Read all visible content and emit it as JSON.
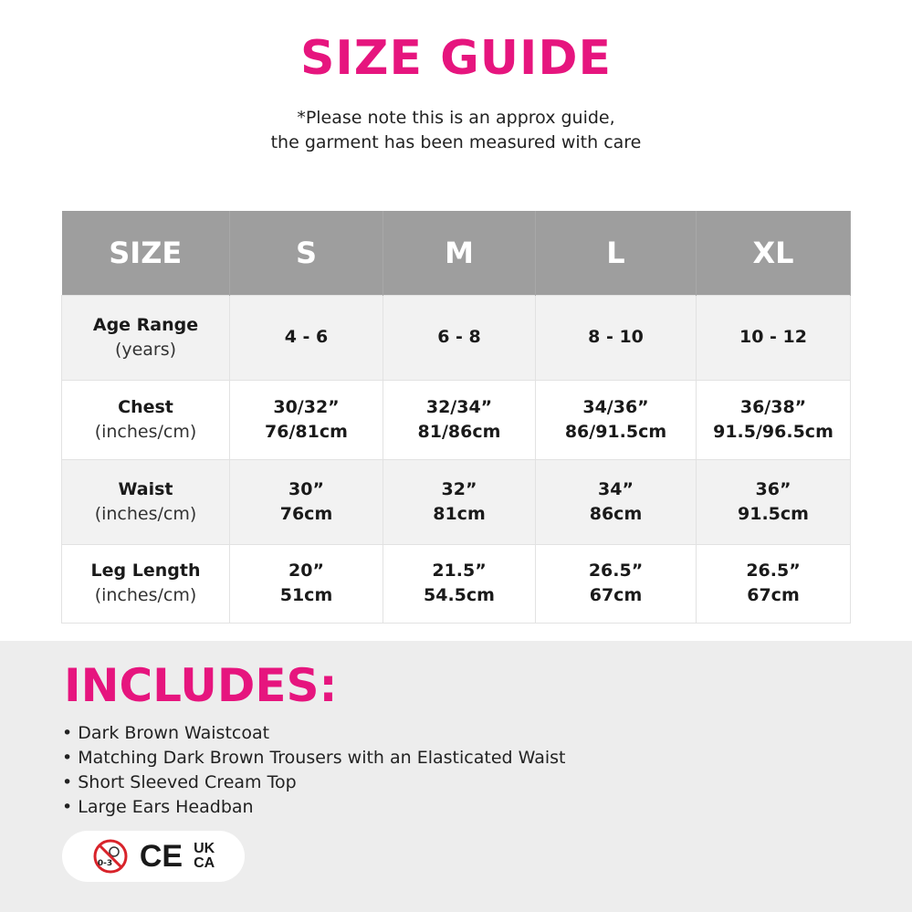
{
  "title": "SIZE GUIDE",
  "note": [
    "*Please note this is an approx guide,",
    "the garment has been measured with care"
  ],
  "table": {
    "headers": [
      "SIZE",
      "S",
      "M",
      "L",
      "XL"
    ],
    "rows": [
      {
        "label": "Age Range",
        "sub": "(years)",
        "values": [
          [
            "4 - 6"
          ],
          [
            "6 - 8"
          ],
          [
            "8 - 10"
          ],
          [
            "10 - 12"
          ]
        ]
      },
      {
        "label": "Chest",
        "sub": "(inches/cm)",
        "values": [
          [
            "30/32”",
            "76/81cm"
          ],
          [
            "32/34”",
            "81/86cm"
          ],
          [
            "34/36”",
            "86/91.5cm"
          ],
          [
            "36/38”",
            "91.5/96.5cm"
          ]
        ]
      },
      {
        "label": "Waist",
        "sub": "(inches/cm)",
        "values": [
          [
            "30”",
            "76cm"
          ],
          [
            "32”",
            "81cm"
          ],
          [
            "34”",
            "86cm"
          ],
          [
            "36”",
            "91.5cm"
          ]
        ]
      },
      {
        "label": "Leg Length",
        "sub": "(inches/cm)",
        "values": [
          [
            "20”",
            "51cm"
          ],
          [
            "21.5”",
            "54.5cm"
          ],
          [
            "26.5”",
            "67cm"
          ],
          [
            "26.5”",
            "67cm"
          ]
        ]
      }
    ]
  },
  "includes": {
    "title": "INCLUDES:",
    "items": [
      "Dark Brown Waistcoat",
      "Matching Dark Brown Trousers with an Elasticated Waist",
      "Short Sleeved Cream Top",
      "Large Ears Headban"
    ]
  },
  "badges": {
    "age_warning": "0-3",
    "ce": "CE",
    "ukca": [
      "UK",
      "CA"
    ]
  },
  "colors": {
    "accent": "#e6157e",
    "header": "#9e9e9e"
  }
}
